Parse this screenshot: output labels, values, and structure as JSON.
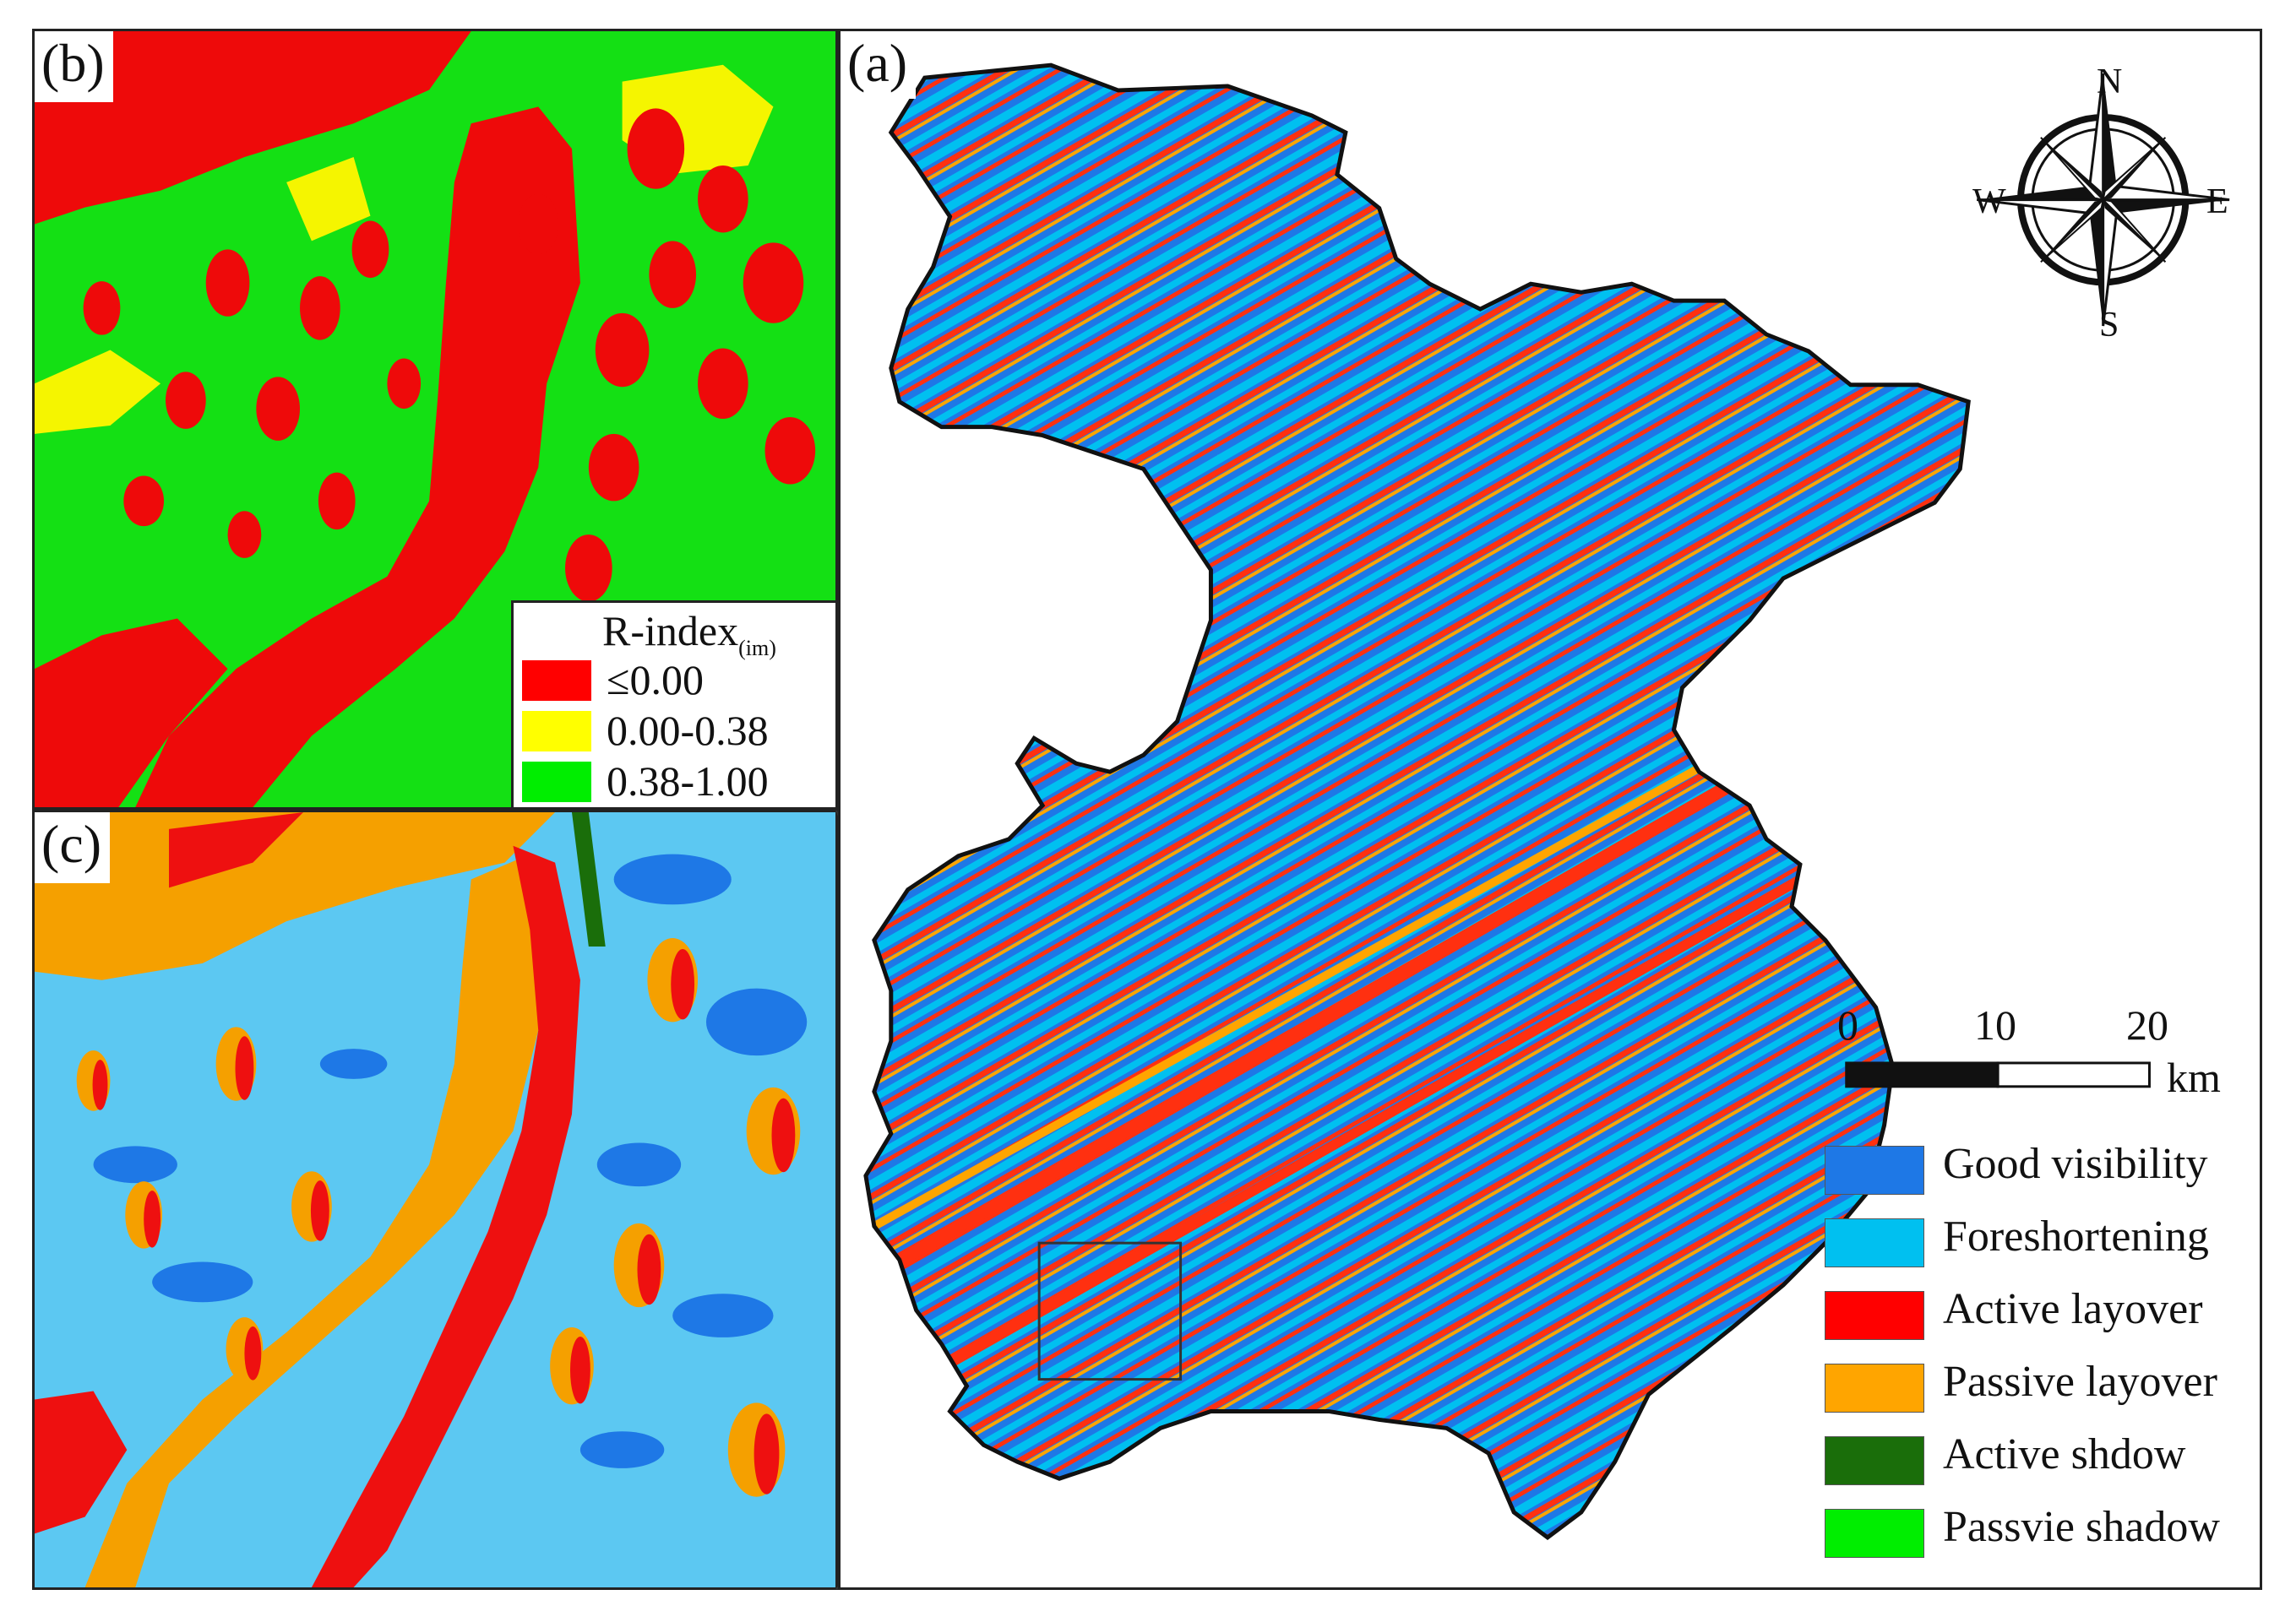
{
  "panels": {
    "a": {
      "letter": "(a)"
    },
    "b": {
      "letter": "(b)"
    },
    "c": {
      "letter": "(c)"
    }
  },
  "r_index_legend": {
    "title": "R-index",
    "title_sub": "(im)",
    "classes": [
      {
        "label": "≤0.00",
        "color": "#ff0000"
      },
      {
        "label": "0.00-0.38",
        "color": "#ffff00"
      },
      {
        "label": "0.38-1.00",
        "color": "#00ee00"
      }
    ]
  },
  "class_legend": [
    {
      "label": "Good visibility",
      "color": "#1e78e6"
    },
    {
      "label": "Foreshortening",
      "color": "#00c0f0"
    },
    {
      "label": "Active layover",
      "color": "#ff0000"
    },
    {
      "label": "Passive layover",
      "color": "#ffa500"
    },
    {
      "label": "Active shdow",
      "color": "#1a6e0a"
    },
    {
      "label": "Passvie shadow",
      "color": "#00ee00"
    }
  ],
  "scale_bar": {
    "ticks": [
      "0",
      "10",
      "20"
    ],
    "unit": "km"
  },
  "compass": {
    "n": "N",
    "s": "S",
    "e": "E",
    "w": "W"
  }
}
